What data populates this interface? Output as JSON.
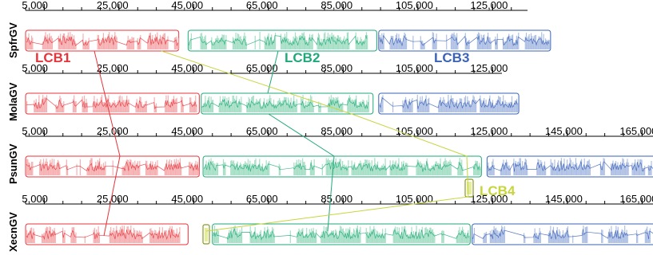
{
  "colors": {
    "lcb1": "#E8333A",
    "lcb2": "#1EAA78",
    "lcb3": "#3A62B8",
    "lcb4": "#C8D43C",
    "lcb1_fill": "#F5B0B2",
    "lcb2_fill": "#A6DFC6",
    "lcb3_fill": "#AFC0E4",
    "lcb4_fill": "#E4EC9E",
    "axis": "#000000"
  },
  "genomes": [
    {
      "name": "SpfrGV",
      "ticks": [
        "5,000",
        "25,000",
        "45,000",
        "65,000",
        "85,000",
        "105,000",
        "125,000"
      ],
      "blocks": [
        {
          "lcb": 1,
          "start": 0,
          "end": 41000
        },
        {
          "lcb": 2,
          "start": 43500,
          "end": 94000
        },
        {
          "lcb": 3,
          "start": 94500,
          "end": 140500
        }
      ]
    },
    {
      "name": "MolaGV",
      "ticks": [
        "5,000",
        "25,000",
        "45,000",
        "65,000",
        "85,000",
        "105,000",
        "125,000"
      ],
      "blocks": [
        {
          "lcb": 1,
          "start": 0,
          "end": 46500
        },
        {
          "lcb": 2,
          "start": 47000,
          "end": 93000
        },
        {
          "lcb": 3,
          "start": 94500,
          "end": 132000
        }
      ]
    },
    {
      "name": "PsunGV",
      "ticks": [
        "5,000",
        "25,000",
        "45,000",
        "65,000",
        "85,000",
        "105,000",
        "125,000",
        "145,000",
        "165,000"
      ],
      "blocks": [
        {
          "lcb": 1,
          "start": 0,
          "end": 46500
        },
        {
          "lcb": 2,
          "start": 47500,
          "end": 122000
        },
        {
          "lcb": 3,
          "start": 123500,
          "end": 170000
        }
      ]
    },
    {
      "name": "XecnGV",
      "ticks": [
        "5,000",
        "25,000",
        "45,000",
        "65,000",
        "85,000",
        "105,000",
        "125,000",
        "145,000",
        "165,000"
      ],
      "blocks": [
        {
          "lcb": 1,
          "start": 0,
          "end": 43500
        },
        {
          "lcb": 2,
          "start": 50000,
          "end": 119000
        },
        {
          "lcb": 3,
          "start": 119500,
          "end": 171500
        }
      ]
    }
  ],
  "lcb_labels": [
    {
      "text": "LCB1",
      "lcb": 1
    },
    {
      "text": "LCB2",
      "lcb": 2
    },
    {
      "text": "LCB3",
      "lcb": 3
    },
    {
      "text": "LCB4",
      "lcb": 4
    }
  ]
}
